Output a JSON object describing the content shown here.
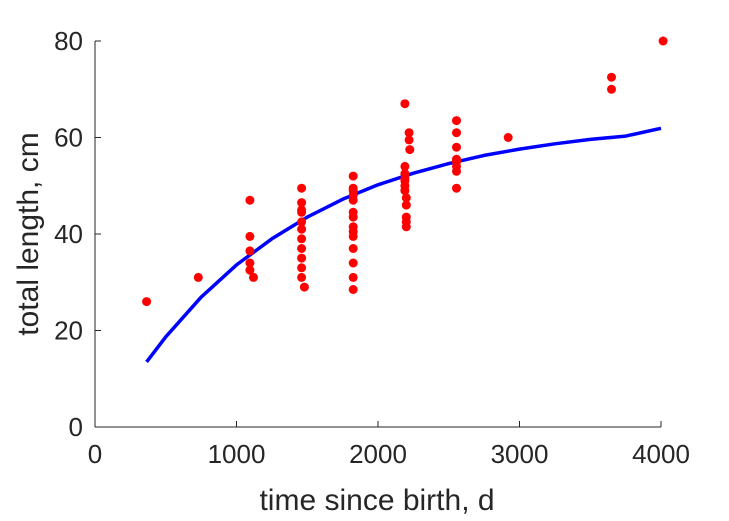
{
  "chart_data": {
    "type": "scatter",
    "title": "",
    "xlabel": "time since birth, d",
    "ylabel": "total length, cm",
    "xlim": [
      0,
      4000
    ],
    "ylim": [
      0,
      80
    ],
    "xticks": [
      0,
      1000,
      2000,
      3000,
      4000
    ],
    "yticks": [
      0,
      20,
      40,
      60,
      80
    ],
    "grid": false,
    "colors": {
      "points": "#ff0000",
      "fit": "#0000ff",
      "axis": "#262626"
    },
    "series": [
      {
        "kind": "scatter",
        "points": [
          [
            365,
            26
          ],
          [
            730,
            31
          ],
          [
            1095,
            47
          ],
          [
            1095,
            39.5
          ],
          [
            1095,
            36.5
          ],
          [
            1095,
            34
          ],
          [
            1095,
            32.5
          ],
          [
            1120,
            31
          ],
          [
            1460,
            49.5
          ],
          [
            1460,
            46.5
          ],
          [
            1460,
            45
          ],
          [
            1460,
            44.5
          ],
          [
            1460,
            42.5
          ],
          [
            1460,
            41
          ],
          [
            1460,
            39
          ],
          [
            1460,
            37
          ],
          [
            1460,
            35
          ],
          [
            1460,
            33
          ],
          [
            1460,
            31
          ],
          [
            1480,
            29
          ],
          [
            1825,
            52
          ],
          [
            1825,
            49.5
          ],
          [
            1825,
            49
          ],
          [
            1825,
            48
          ],
          [
            1825,
            47
          ],
          [
            1825,
            44.5
          ],
          [
            1825,
            43.5
          ],
          [
            1825,
            41.5
          ],
          [
            1825,
            40.5
          ],
          [
            1825,
            39.5
          ],
          [
            1825,
            37
          ],
          [
            1825,
            34
          ],
          [
            1825,
            31
          ],
          [
            1825,
            28.5
          ],
          [
            2190,
            67
          ],
          [
            2220,
            61
          ],
          [
            2220,
            59.5
          ],
          [
            2225,
            57.5
          ],
          [
            2190,
            54
          ],
          [
            2190,
            52.5
          ],
          [
            2190,
            51.5
          ],
          [
            2190,
            51
          ],
          [
            2190,
            50
          ],
          [
            2190,
            49
          ],
          [
            2200,
            47.5
          ],
          [
            2200,
            46
          ],
          [
            2200,
            43.5
          ],
          [
            2200,
            42.5
          ],
          [
            2200,
            41.5
          ],
          [
            2555,
            63.5
          ],
          [
            2555,
            61
          ],
          [
            2555,
            58
          ],
          [
            2555,
            55.5
          ],
          [
            2555,
            55
          ],
          [
            2555,
            54
          ],
          [
            2555,
            53
          ],
          [
            2555,
            49.5
          ],
          [
            2920,
            60
          ],
          [
            3650,
            72.5
          ],
          [
            3650,
            70
          ],
          [
            4015,
            80
          ]
        ]
      },
      {
        "kind": "line",
        "x": [
          365,
          500,
          750,
          1000,
          1250,
          1500,
          1750,
          2000,
          2250,
          2500,
          2750,
          3000,
          3250,
          3500,
          3750,
          4000
        ],
        "y": [
          13.5,
          18.7,
          26.9,
          33.6,
          39.0,
          43.5,
          47.2,
          50.2,
          52.6,
          54.6,
          56.3,
          57.6,
          58.7,
          59.6,
          60.3,
          61.9
        ]
      }
    ]
  }
}
